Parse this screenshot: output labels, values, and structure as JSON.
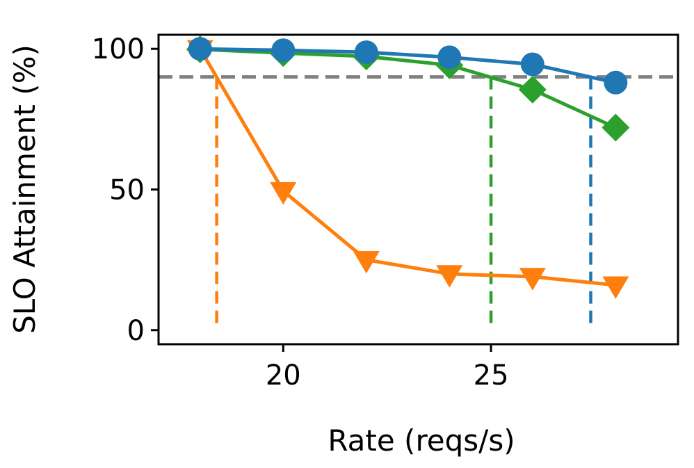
{
  "chart_data": {
    "type": "line",
    "title": "",
    "xlabel": "Rate (reqs/s)",
    "ylabel": "SLO Attainment (%)",
    "xlim": [
      17,
      29.5
    ],
    "ylim": [
      -5,
      105
    ],
    "xticks": [
      20,
      25
    ],
    "yticks": [
      0,
      50,
      100
    ],
    "grid": false,
    "legend": "none",
    "series": [
      {
        "name": "blue-circle",
        "color": "#1f77b4",
        "marker": "circle",
        "x": [
          18,
          20,
          22,
          24,
          26,
          28
        ],
        "values": [
          100,
          99.5,
          98.8,
          97,
          94.5,
          88
        ]
      },
      {
        "name": "green-diamond",
        "color": "#2ca02c",
        "marker": "diamond",
        "x": [
          18,
          20,
          22,
          24,
          26,
          28
        ],
        "values": [
          99.8,
          98.5,
          97.3,
          94.2,
          85.5,
          72
        ]
      },
      {
        "name": "orange-triangle",
        "color": "#ff7f0e",
        "marker": "triangle-down",
        "x": [
          18,
          20,
          22,
          24,
          26,
          28
        ],
        "values": [
          100,
          49.5,
          25,
          20,
          19,
          16
        ]
      }
    ],
    "threshold": {
      "value": 90,
      "color": "#808080",
      "style": "dashed"
    },
    "vertical_markers": [
      {
        "x": 18.4,
        "color": "#ff7f0e"
      },
      {
        "x": 25.0,
        "color": "#2ca02c"
      },
      {
        "x": 27.4,
        "color": "#1f77b4"
      }
    ]
  }
}
